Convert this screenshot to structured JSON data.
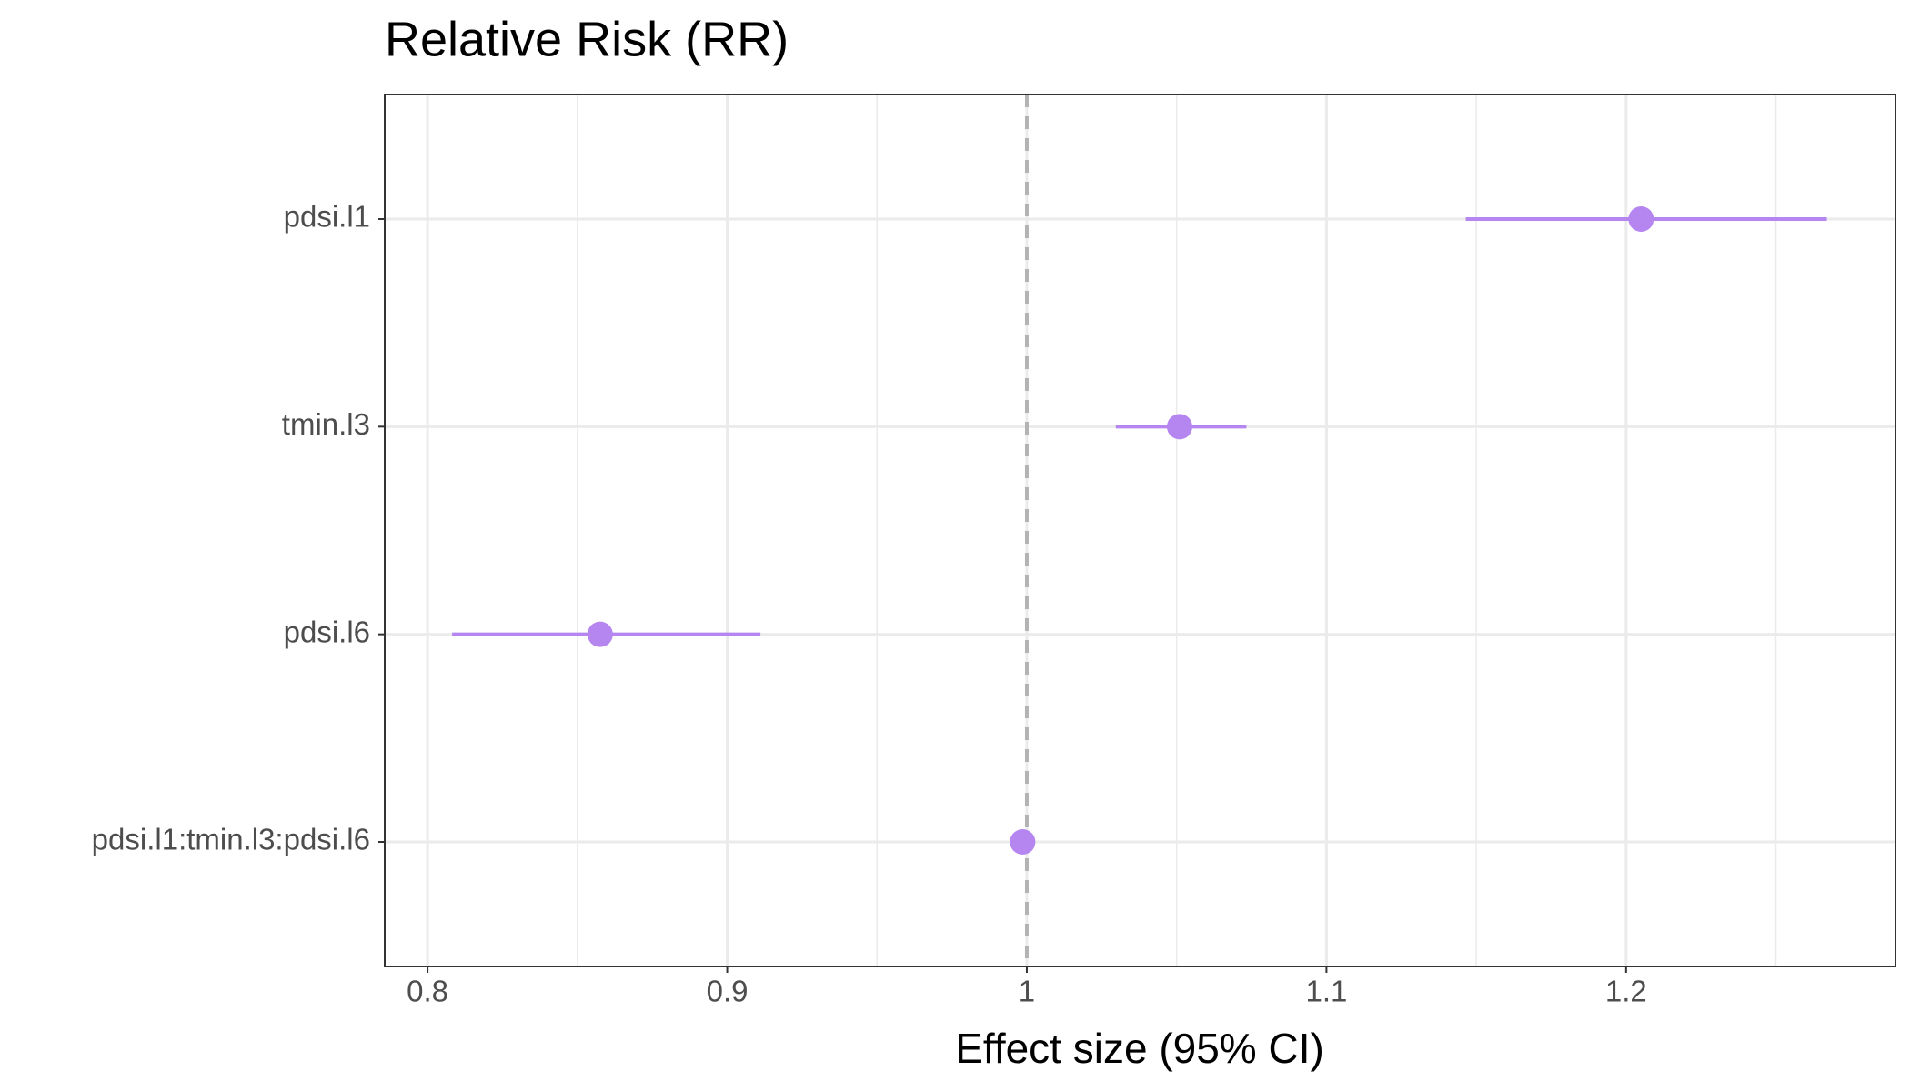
{
  "chart_data": {
    "type": "forest",
    "title": "Relative Risk (RR)",
    "x_label": "Effect size (95% CI)",
    "categories": [
      "pdsi.l1",
      "tmin.l3",
      "pdsi.l6",
      "pdsi.l1:tmin.l3:pdsi.l6"
    ],
    "values": [
      1.205,
      1.051,
      0.8576,
      0.9986
    ],
    "lower": [
      1.1465,
      1.0297,
      0.8082,
      0.998
    ],
    "upper": [
      1.267,
      1.0733,
      0.9111,
      0.9992
    ],
    "color": "#b586f0",
    "xlim": [
      0.7857,
      1.2899
    ],
    "xticks": [
      0.8,
      0.9,
      1,
      1.1,
      1.2
    ],
    "ref_line": 1,
    "grid": true
  }
}
